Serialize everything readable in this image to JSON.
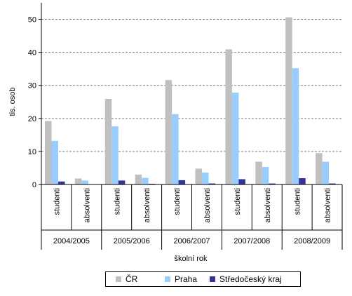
{
  "chart_data": {
    "type": "bar",
    "groups": [
      "2004/2005",
      "2005/2006",
      "2006/2007",
      "2007/2008",
      "2008/2009"
    ],
    "subcategories": [
      "studenti",
      "absolventi"
    ],
    "series": [
      {
        "name": "ČR",
        "color": "#c0c0c0",
        "values": [
          19.2,
          1.8,
          25.9,
          3.0,
          31.6,
          4.8,
          40.9,
          6.9,
          50.6,
          9.5
        ]
      },
      {
        "name": "Praha",
        "color": "#99ccff",
        "values": [
          13.2,
          1.2,
          17.6,
          2.0,
          21.3,
          3.6,
          27.8,
          5.3,
          35.2,
          6.9
        ]
      },
      {
        "name": "Středočeský kraj",
        "color": "#333399",
        "values": [
          0.9,
          0.1,
          1.2,
          0.2,
          1.3,
          0.3,
          1.6,
          0.3,
          1.9,
          0.3
        ]
      }
    ],
    "yticks": [
      "0",
      "10",
      "20",
      "30",
      "40",
      "50"
    ],
    "ylim": [
      0,
      55
    ],
    "ylabel": "tis. osob",
    "xlabel": "školní rok",
    "grid": true,
    "legend_position": "bottom"
  }
}
